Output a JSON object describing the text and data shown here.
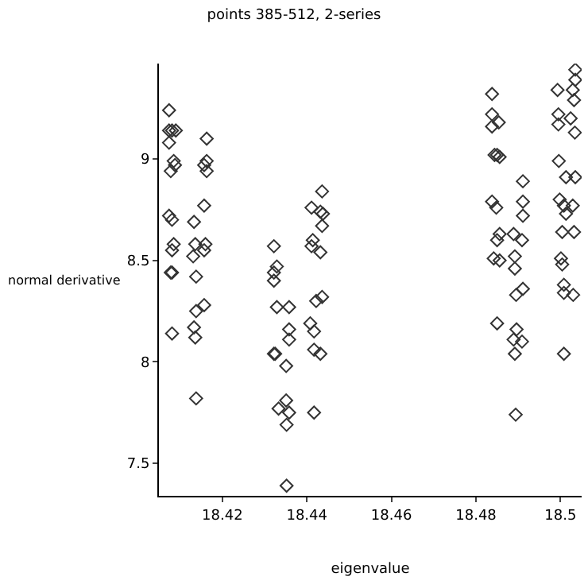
{
  "chart_data": {
    "type": "scatter",
    "title": "points 385-512, 2-series",
    "xlabel": "eigenvalue",
    "ylabel": "normal derivative",
    "xlim": [
      18.405,
      18.505
    ],
    "ylim": [
      7.34,
      9.47
    ],
    "xticks": [
      18.42,
      18.44,
      18.46,
      18.48,
      18.5
    ],
    "yticks": [
      7.5,
      8,
      8.5,
      9
    ],
    "marker": "diamond",
    "series": [
      {
        "color": "#333333",
        "x": [
          18.4074,
          18.4074,
          18.4081,
          18.409,
          18.4074,
          18.4085,
          18.4088,
          18.4078,
          18.4074,
          18.4081,
          18.4085,
          18.4081,
          18.4078,
          18.4081,
          18.4081,
          18.4163,
          18.4163,
          18.4157,
          18.4163,
          18.4157,
          18.4133,
          18.4136,
          18.416,
          18.4157,
          18.4131,
          18.4138,
          18.4157,
          18.4138,
          18.4133,
          18.4136,
          18.4138,
          18.4322,
          18.4329,
          18.4322,
          18.4322,
          18.4329,
          18.4358,
          18.4358,
          18.4358,
          18.4322,
          18.4325,
          18.4351,
          18.4351,
          18.4333,
          18.4358,
          18.4352,
          18.4352,
          18.4436,
          18.4411,
          18.4432,
          18.4438,
          18.4436,
          18.4414,
          18.4411,
          18.4432,
          18.4422,
          18.4436,
          18.4408,
          18.4417,
          18.4417,
          18.4432,
          18.4417
        ],
        "values": [
          9.24,
          9.14,
          9.14,
          9.14,
          9.08,
          8.99,
          8.97,
          8.94,
          8.72,
          8.7,
          8.58,
          8.55,
          8.44,
          8.44,
          8.14,
          9.1,
          8.99,
          8.97,
          8.94,
          8.77,
          8.69,
          8.58,
          8.58,
          8.55,
          8.52,
          8.42,
          8.28,
          8.25,
          8.17,
          8.12,
          7.82,
          8.57,
          8.47,
          8.44,
          8.4,
          8.27,
          8.27,
          8.16,
          8.11,
          8.04,
          8.04,
          7.98,
          7.81,
          7.77,
          7.75,
          7.69,
          7.39,
          8.84,
          8.76,
          8.74,
          8.73,
          8.67,
          8.6,
          8.57,
          8.54,
          8.3,
          8.32,
          8.19,
          8.15,
          8.06,
          8.04,
          7.75
        ]
      },
      {
        "color": "#333333",
        "x": [
          18.4838,
          18.4838,
          18.4854,
          18.4838,
          18.4844,
          18.4856,
          18.485,
          18.4838,
          18.4848,
          18.4856,
          18.485,
          18.4842,
          18.4856,
          18.485,
          18.4911,
          18.4911,
          18.4911,
          18.4889,
          18.4909,
          18.4892,
          18.4892,
          18.4911,
          18.4895,
          18.4896,
          18.4889,
          18.4909,
          18.4892,
          18.4894,
          18.4993,
          18.5029,
          18.5035,
          18.5032,
          18.5035,
          18.4995,
          18.4995,
          18.5024,
          18.5034,
          18.4996,
          18.5013,
          18.5035,
          18.4998,
          18.5008,
          18.5029,
          18.5013,
          18.5004,
          18.5032,
          18.5001,
          18.5004,
          18.5008,
          18.5008,
          18.503,
          18.5008
        ],
        "values": [
          9.32,
          9.22,
          9.18,
          9.16,
          9.02,
          9.01,
          9.02,
          8.79,
          8.76,
          8.63,
          8.6,
          8.51,
          8.5,
          8.19,
          8.89,
          8.79,
          8.72,
          8.63,
          8.6,
          8.52,
          8.46,
          8.36,
          8.33,
          8.16,
          8.11,
          8.1,
          8.04,
          7.74,
          9.34,
          9.34,
          9.39,
          9.29,
          9.44,
          9.22,
          9.17,
          9.2,
          9.13,
          8.99,
          8.91,
          8.91,
          8.8,
          8.77,
          8.77,
          8.73,
          8.64,
          8.64,
          8.51,
          8.48,
          8.38,
          8.34,
          8.33,
          8.04
        ]
      }
    ]
  }
}
